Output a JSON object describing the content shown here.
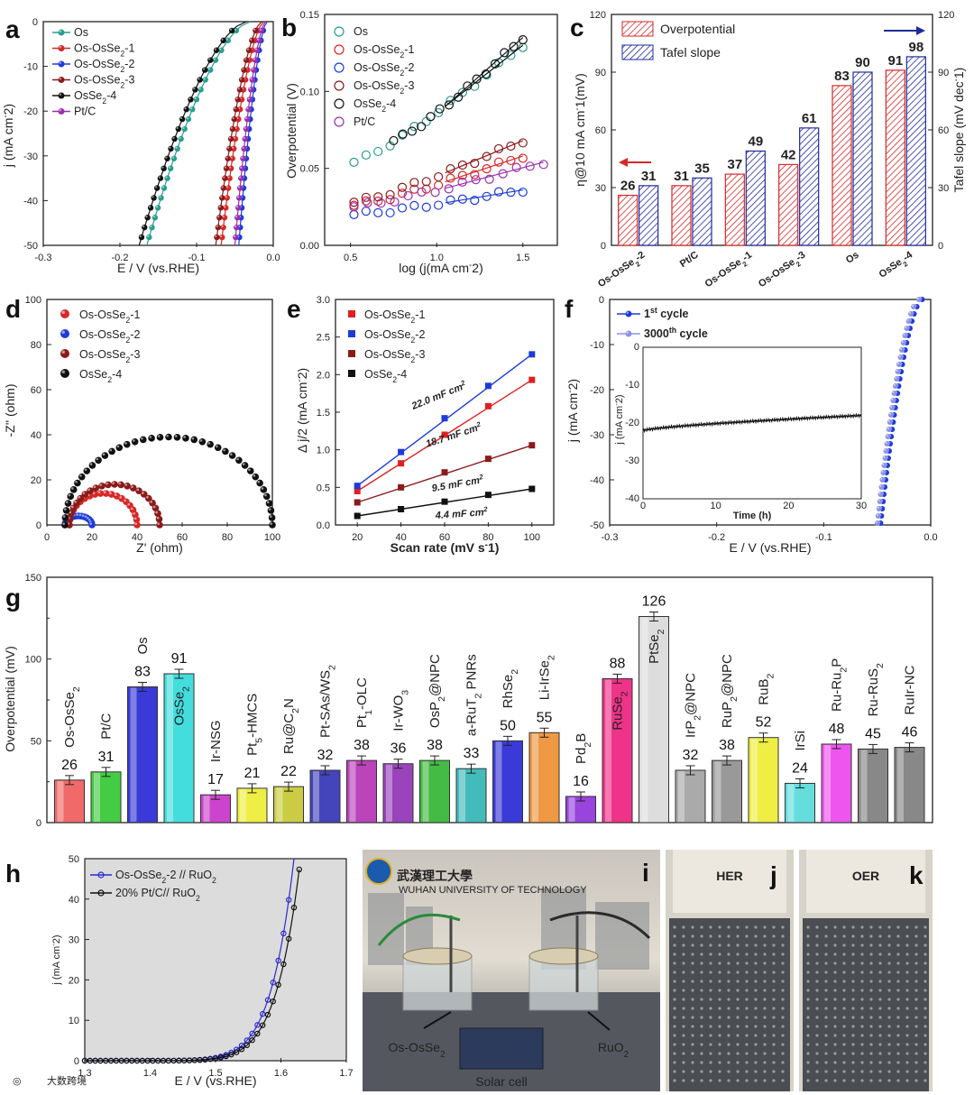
{
  "chart_data": [
    {
      "panel": "a",
      "type": "line",
      "xlabel": "E / V (vs.RHE)",
      "ylabel": "j (mA cm−2)",
      "xlim": [
        -0.3,
        0.0
      ],
      "ylim": [
        -50,
        0
      ],
      "xticks": [
        "-0.3",
        "-0.2",
        "-0.1",
        "0.0"
      ],
      "yticks": [
        "0",
        "-10",
        "-20",
        "-30",
        "-40",
        "-50"
      ],
      "series": [
        {
          "name": "Os",
          "color": "#2a9d8f",
          "onset": -0.03,
          "at_minus50": -0.165
        },
        {
          "name": "Os-OsSe₂-1",
          "color": "#d62828",
          "onset": -0.012,
          "at_minus50": -0.068
        },
        {
          "name": "Os-OsSe₂-2",
          "color": "#1d3bd8",
          "onset": -0.008,
          "at_minus50": -0.045
        },
        {
          "name": "Os-OsSe₂-3",
          "color": "#8b1a1a",
          "onset": -0.015,
          "at_minus50": -0.075
        },
        {
          "name": "OsSe₂-4",
          "color": "#111111",
          "onset": -0.035,
          "at_minus50": -0.175
        },
        {
          "name": "Pt/C",
          "color": "#9b2fae",
          "onset": -0.01,
          "at_minus50": -0.05
        }
      ]
    },
    {
      "panel": "b",
      "type": "scatter",
      "xlabel": "log (j(mA cm−2)",
      "ylabel": "Overpotential (V)",
      "xlim": [
        0.35,
        1.7
      ],
      "ylim": [
        0,
        0.15
      ],
      "xticks": [
        "0.5",
        "1.0",
        "1.5"
      ],
      "yticks": [
        "0.00",
        "0.05",
        "0.10",
        "0.15"
      ],
      "series": [
        {
          "name": "Os",
          "color": "#2a9d8f",
          "x0": 0.52,
          "x1": 1.5,
          "y0": 0.054,
          "y1": 0.13
        },
        {
          "name": "Os-OsSe₂-1",
          "color": "#d62828",
          "x0": 0.52,
          "x1": 1.5,
          "y0": 0.026,
          "y1": 0.058
        },
        {
          "name": "Os-OsSe₂-2",
          "color": "#1d3bd8",
          "x0": 0.52,
          "x1": 1.5,
          "y0": 0.02,
          "y1": 0.036
        },
        {
          "name": "Os-OsSe₂-3",
          "color": "#8b1a1a",
          "x0": 0.52,
          "x1": 1.5,
          "y0": 0.028,
          "y1": 0.068
        },
        {
          "name": "OsSe₂-4",
          "color": "#111111",
          "x0": 0.75,
          "x1": 1.5,
          "y0": 0.068,
          "y1": 0.135
        },
        {
          "name": "Pt/C",
          "color": "#9b2fae",
          "x0": 0.52,
          "x1": 1.62,
          "y0": 0.025,
          "y1": 0.054
        }
      ]
    },
    {
      "panel": "c",
      "type": "bar",
      "categories": [
        "Os-OsSe₂-2",
        "Pt/C",
        "Os-OsSe₂-1",
        "Os-OsSe₂-3",
        "Os",
        "OsSe₂-4"
      ],
      "series": [
        {
          "name": "Overpotential",
          "color": "#d62828",
          "values": [
            26,
            31,
            37,
            42,
            83,
            91
          ]
        },
        {
          "name": "Tafel slope",
          "color": "#1f2b9c",
          "values": [
            31,
            35,
            49,
            61,
            90,
            98
          ]
        }
      ],
      "ylabel": "η@10 mA cm−1(mV)",
      "y2label": "Tafel slope (mV dec−1)",
      "ylim": [
        0,
        120
      ],
      "yticks": [
        "0",
        "30",
        "60",
        "90",
        "120"
      ]
    },
    {
      "panel": "d",
      "type": "scatter",
      "xlabel": "Z' (ohm)",
      "ylabel": "-Z'' (ohm)",
      "xlim": [
        0,
        100
      ],
      "ylim": [
        0,
        100
      ],
      "xticks": [
        "0",
        "20",
        "40",
        "60",
        "80",
        "100"
      ],
      "yticks": [
        "0",
        "20",
        "40",
        "60",
        "80",
        "100"
      ],
      "series": [
        {
          "name": "Os-OsSe₂-1",
          "color": "#d62828",
          "start": 10,
          "end": 40,
          "peak": 14
        },
        {
          "name": "Os-OsSe₂-2",
          "color": "#1d3bd8",
          "start": 8,
          "end": 20,
          "peak": 4
        },
        {
          "name": "Os-OsSe₂-3",
          "color": "#8b1a1a",
          "start": 10,
          "end": 50,
          "peak": 18
        },
        {
          "name": "OsSe₂-4",
          "color": "#111111",
          "start": 8,
          "end": 100,
          "peak": 39
        }
      ]
    },
    {
      "panel": "e",
      "type": "scatter",
      "xlabel": "Scan rate (mV s−1)",
      "ylabel": "Δ j/2 (mA cm−2)",
      "xlim": [
        10,
        110
      ],
      "ylim": [
        0,
        3.0
      ],
      "xticks": [
        "20",
        "40",
        "60",
        "80",
        "100"
      ],
      "yticks": [
        "0.0",
        "0.5",
        "1.0",
        "1.5",
        "2.0",
        "2.5",
        "3.0"
      ],
      "x": [
        20,
        40,
        60,
        80,
        100
      ],
      "series": [
        {
          "name": "Os-OsSe₂-1",
          "color": "#e02020",
          "values": [
            0.45,
            0.82,
            1.2,
            1.58,
            1.93
          ],
          "annotation": "18.7 mF cm²"
        },
        {
          "name": "Os-OsSe₂-2",
          "color": "#1d3bd8",
          "values": [
            0.52,
            0.97,
            1.42,
            1.85,
            2.27
          ],
          "annotation": "22.0 mF cm²"
        },
        {
          "name": "Os-OsSe₂-3",
          "color": "#8b1a1a",
          "values": [
            0.3,
            0.5,
            0.7,
            0.88,
            1.06
          ],
          "annotation": "9.5 mF cm²"
        },
        {
          "name": "OsSe₂-4",
          "color": "#111111",
          "values": [
            0.12,
            0.21,
            0.31,
            0.4,
            0.48
          ],
          "annotation": "4.4 mF cm²"
        }
      ]
    },
    {
      "panel": "f",
      "type": "line",
      "xlabel": "E / V (vs.RHE)",
      "ylabel": "j (mA cm−2)",
      "xlim": [
        -0.3,
        0.0
      ],
      "ylim": [
        -50,
        0
      ],
      "xticks": [
        "-0.3",
        "-0.2",
        "-0.1",
        "0.0"
      ],
      "yticks": [
        "0",
        "-10",
        "-20",
        "-30",
        "-40",
        "-50"
      ],
      "series": [
        {
          "name": "1st cycle",
          "color": "#1d3bd8"
        },
        {
          "name": "3000th cycle",
          "color": "#8c93e6"
        }
      ],
      "inset": {
        "xlabel": "Time (h)",
        "ylabel": "j (mA cm−2)",
        "xticks": [
          "0",
          "10",
          "20",
          "30"
        ],
        "yticks": [
          "0",
          "-10",
          "-20",
          "-30",
          "-40"
        ],
        "start": -22,
        "end": -18
      }
    },
    {
      "panel": "g",
      "type": "bar",
      "ylabel": "Overpotential (mV)",
      "ylim": [
        0,
        150
      ],
      "yticks": [
        "0",
        "50",
        "100",
        "150"
      ],
      "categories": [
        "Os-OsSe₂",
        "Pt/C",
        "Os",
        "OsSe₂",
        "Ir-NSG",
        "Pt₅-HMCS",
        "Ru@C₂N",
        "Pt-SAs/WS₂",
        "Pt₁-OLC",
        "Ir-WO₃",
        "OsP₂@NPC",
        "a-RuT₂ PNRs",
        "RhSe₂",
        "Li-IrSe₂",
        "Pd₂B",
        "RuSe₂",
        "PtSe₂",
        "IrP₂@NPC",
        "RuP₂@NPC",
        "RuB₂",
        "IrSi",
        "Ru-Ru₂P",
        "Ru-RuS₂",
        "RuIr-NC"
      ],
      "values": [
        26,
        31,
        83,
        91,
        17,
        21,
        22,
        32,
        38,
        36,
        38,
        33,
        50,
        55,
        16,
        88,
        126,
        32,
        38,
        52,
        24,
        48,
        45,
        46
      ],
      "colors": [
        "#f06a6a",
        "#44cc44",
        "#3a3ad8",
        "#44dddd",
        "#cc44cc",
        "#eeee44",
        "#cccc44",
        "#4444bb",
        "#bb44bb",
        "#9944bb",
        "#44bb44",
        "#44bbbb",
        "#3a3ad8",
        "#ee9944",
        "#9944dd",
        "#ee3388",
        "#dddddd",
        "#aaaaaa",
        "#999999",
        "#eeee44",
        "#66dddd",
        "#ee55ee",
        "#888888",
        "#888888"
      ]
    },
    {
      "panel": "h",
      "type": "line",
      "xlabel": "E / V (vs.RHE)",
      "ylabel": "j (mA cm−2)",
      "xlim": [
        1.3,
        1.7
      ],
      "ylim": [
        0,
        50
      ],
      "xticks": [
        "1.3",
        "1.4",
        "1.5",
        "1.6",
        "1.7"
      ],
      "yticks": [
        "0",
        "10",
        "20",
        "30",
        "40",
        "50"
      ],
      "series": [
        {
          "name": "Os-OsSe₂-2 // RuO₂",
          "color": "#2a2ad0",
          "at50": 1.62
        },
        {
          "name": "20% Pt/C// RuO₂",
          "color": "#111111",
          "at50": 1.63
        }
      ]
    }
  ],
  "photos": {
    "i": {
      "logo_text": "武漢理工大學",
      "logo_sub": "WUHAN UNIVERSITY OF TECHNOLOGY",
      "left_label": "Os-OsSe₂",
      "right_label": "RuO₂",
      "bottom_label": "Solar cell"
    },
    "j": {
      "label": "HER"
    },
    "k": {
      "label": "OER"
    }
  },
  "watermark": "大数跨境"
}
